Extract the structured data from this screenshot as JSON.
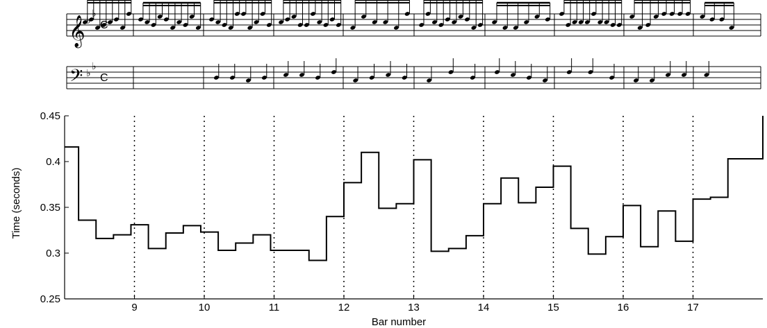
{
  "score": {
    "clef_treble": "treble-clef-icon",
    "clef_bass": "bass-clef-icon",
    "key_signature": "B-flat major (2 flats)",
    "time_signature": "C",
    "bar_count": 10
  },
  "chart_data": {
    "type": "line",
    "style": "step",
    "title": "",
    "xlabel": "Bar number",
    "ylabel": "Time (seconds)",
    "xlim": [
      8.0,
      18.0
    ],
    "ylim": [
      0.25,
      0.45
    ],
    "x_ticks": [
      9,
      10,
      11,
      12,
      13,
      14,
      15,
      16,
      17
    ],
    "y_ticks": [
      0.25,
      0.3,
      0.35,
      0.4,
      0.45
    ],
    "y_tick_labels": [
      "0.25",
      "0.3",
      "0.35",
      "0.4",
      "0.45"
    ],
    "bar_lines": [
      9,
      10,
      11,
      12,
      13,
      14,
      15,
      16,
      17
    ],
    "grid": "vertical dotted lines at bar numbers",
    "legend": "none",
    "series": [
      {
        "color": "#000000",
        "steps": [
          [
            8.0,
            0.416
          ],
          [
            8.2,
            0.336
          ],
          [
            8.45,
            0.316
          ],
          [
            8.7,
            0.32
          ],
          [
            8.95,
            0.331
          ],
          [
            9.2,
            0.305
          ],
          [
            9.45,
            0.322
          ],
          [
            9.7,
            0.33
          ],
          [
            9.95,
            0.323
          ],
          [
            10.2,
            0.303
          ],
          [
            10.45,
            0.311
          ],
          [
            10.7,
            0.32
          ],
          [
            10.95,
            0.303
          ],
          [
            11.25,
            0.303
          ],
          [
            11.5,
            0.292
          ],
          [
            11.75,
            0.34
          ],
          [
            12.0,
            0.377
          ],
          [
            12.25,
            0.41
          ],
          [
            12.5,
            0.349
          ],
          [
            12.75,
            0.354
          ],
          [
            13.0,
            0.402
          ],
          [
            13.25,
            0.302
          ],
          [
            13.5,
            0.305
          ],
          [
            13.75,
            0.319
          ],
          [
            14.0,
            0.354
          ],
          [
            14.25,
            0.382
          ],
          [
            14.5,
            0.355
          ],
          [
            14.75,
            0.372
          ],
          [
            15.0,
            0.395
          ],
          [
            15.25,
            0.327
          ],
          [
            15.5,
            0.299
          ],
          [
            15.75,
            0.318
          ],
          [
            16.0,
            0.352
          ],
          [
            16.25,
            0.307
          ],
          [
            16.5,
            0.346
          ],
          [
            16.75,
            0.313
          ],
          [
            17.0,
            0.359
          ],
          [
            17.25,
            0.361
          ],
          [
            17.5,
            0.403
          ],
          [
            18.0,
            0.45
          ]
        ]
      }
    ]
  }
}
